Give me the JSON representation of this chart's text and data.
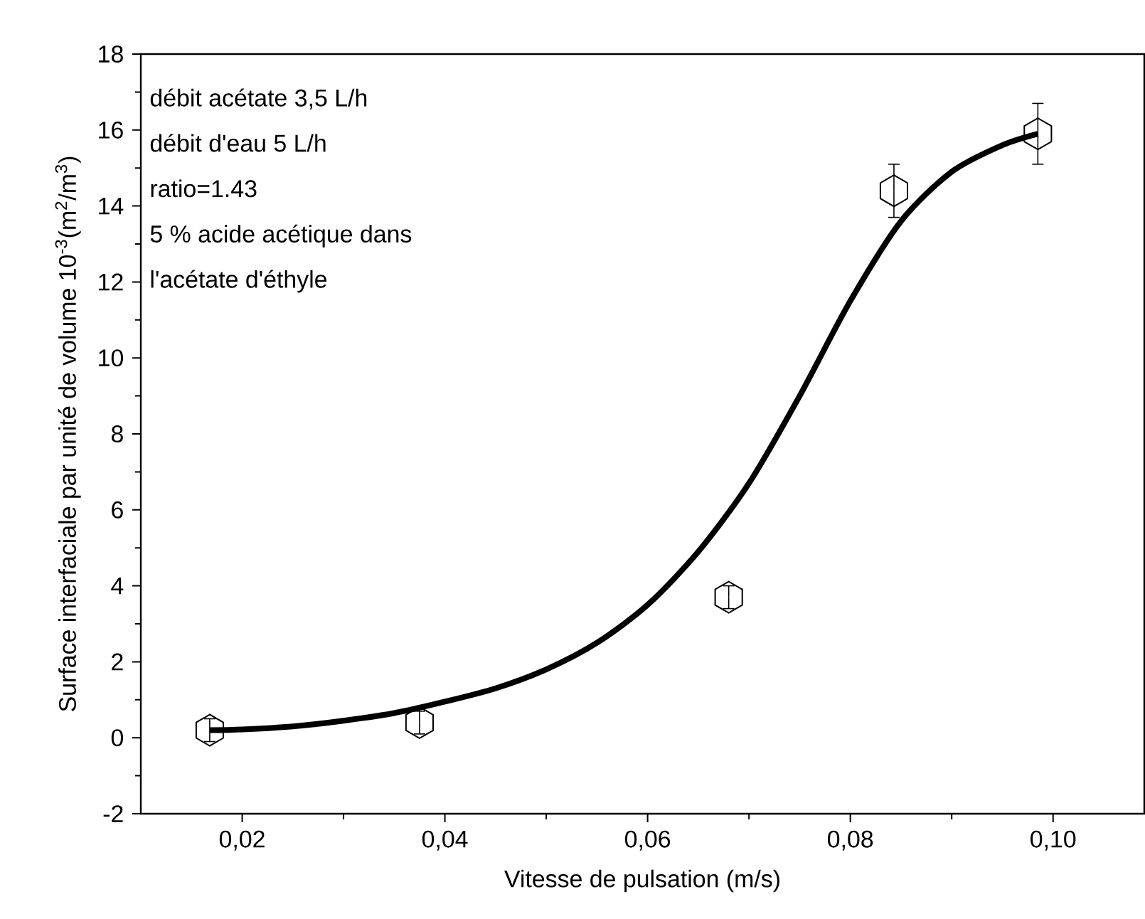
{
  "chart_data": {
    "type": "scatter",
    "xlabel": "Vitesse de pulsation (m/s)",
    "ylabel": "Surface interfaciale par unité de volume 10$^{-3}$(m$^{2}$/m$^{3}$)",
    "annotations": [
      "débit acétate 3,5 L/h",
      "débit d'eau 5 L/h",
      "ratio=1.43",
      "5 % acide acétique dans",
      "l'acétate d'éthyle"
    ],
    "xlim": [
      0.01,
      0.109
    ],
    "ylim": [
      -2,
      18
    ],
    "xticks": [
      {
        "value": 0.02,
        "label": "0,02"
      },
      {
        "value": 0.04,
        "label": "0,04"
      },
      {
        "value": 0.06,
        "label": "0,06"
      },
      {
        "value": 0.08,
        "label": "0,08"
      },
      {
        "value": 0.1,
        "label": "0,10"
      }
    ],
    "yticks": [
      -2,
      0,
      2,
      4,
      6,
      8,
      10,
      12,
      14,
      16,
      18
    ],
    "grid": false,
    "series": [
      {
        "type": "line",
        "color": "#000000",
        "marker": "none",
        "line_style": "solid",
        "x": [
          0.0168,
          0.02,
          0.025,
          0.03,
          0.035,
          0.04,
          0.045,
          0.05,
          0.055,
          0.06,
          0.065,
          0.07,
          0.075,
          0.08,
          0.085,
          0.09,
          0.095,
          0.0985
        ],
        "values": [
          0.2,
          0.22,
          0.3,
          0.45,
          0.65,
          0.95,
          1.3,
          1.8,
          2.5,
          3.5,
          4.9,
          6.7,
          9.0,
          11.5,
          13.6,
          14.9,
          15.6,
          15.9
        ]
      },
      {
        "color": "#000000",
        "x": [
          0.0168,
          0.0375,
          0.068,
          0.0843,
          0.0985
        ],
        "values": [
          0.2,
          0.4,
          3.7,
          14.4,
          15.9
        ],
        "errors": [
          0.3,
          0.3,
          0.3,
          [
            13.7,
            15.1
          ],
          [
            15.1,
            16.7
          ]
        ]
      }
    ]
  }
}
